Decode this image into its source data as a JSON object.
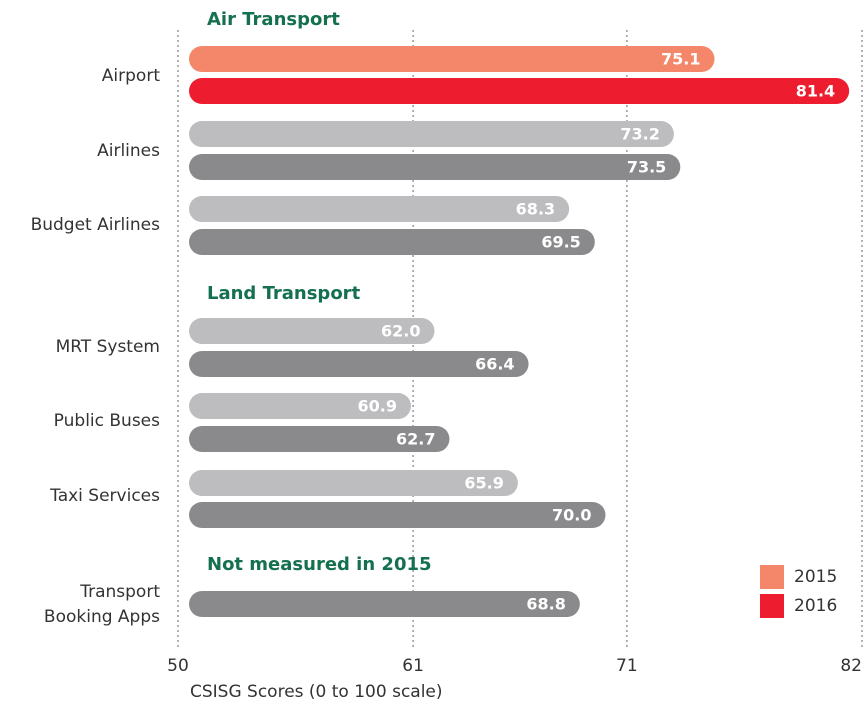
{
  "chart_data": {
    "type": "bar",
    "orientation": "horizontal",
    "group_labels": [
      "Air Transport",
      "Land Transport",
      "Not measured in 2015"
    ],
    "categories": [
      "Airport",
      "Airlines",
      "Budget Airlines",
      "MRT System",
      "Public Buses",
      "Taxi Services",
      [
        "Transport",
        "Booking Apps"
      ]
    ],
    "series": [
      {
        "name": "2015",
        "color": "#f4876a",
        "colors": [
          "#f4876a",
          "#bdbdc0",
          "#bdbdc0",
          "#bdbdc0",
          "#bdbdc0",
          "#bdbdc0",
          null
        ],
        "values": [
          75.1,
          73.2,
          68.3,
          62.0,
          60.9,
          65.9,
          null
        ],
        "value_labels": [
          "75.1",
          "73.2",
          "68.3",
          "62.0",
          "60.9",
          "65.9",
          null
        ]
      },
      {
        "name": "2016",
        "color": "#ed1c2e",
        "colors": [
          "#ed1c2e",
          "#8a8a8d",
          "#8a8a8d",
          "#8a8a8d",
          "#8a8a8d",
          "#8a8a8d",
          "#8a8a8d"
        ],
        "values": [
          81.4,
          73.5,
          69.5,
          66.4,
          62.7,
          70.0,
          68.8
        ],
        "value_labels": [
          "81.4",
          "73.5",
          "69.5",
          "66.4",
          "62.7",
          "70.0",
          "68.8"
        ]
      }
    ],
    "xlim": [
      50,
      82
    ],
    "xticks": [
      50,
      61,
      71,
      82
    ],
    "grid": true,
    "xlabel": "CSISG Scores (0 to 100 scale)",
    "legend": "lower right"
  }
}
